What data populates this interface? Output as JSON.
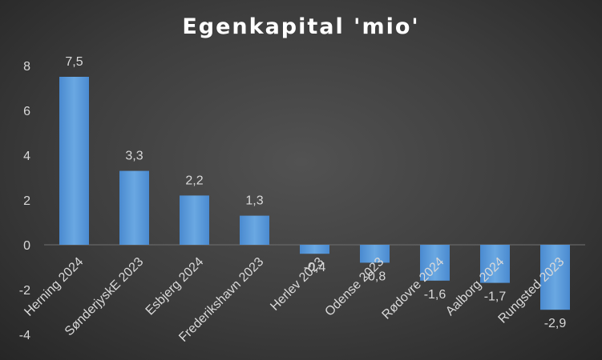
{
  "chart_data": {
    "type": "bar",
    "title": "Egenkapital 'mio'",
    "xlabel": "",
    "ylabel": "",
    "categories": [
      "Herning 2024",
      "SønderjyskE 2023",
      "Esbjerg 2024",
      "Frederikshavn 2023",
      "Herlev 2023",
      "Odense 2023",
      "Rødovre 2024",
      "Aalborg 2024",
      "Rungsted 2023"
    ],
    "values": [
      7.5,
      3.3,
      2.2,
      1.3,
      -0.4,
      -0.8,
      -1.6,
      -1.7,
      -2.9
    ],
    "data_labels": [
      "7,5",
      "3,3",
      "2,2",
      "1,3",
      "-0,4",
      "-0,8",
      "-1,6",
      "-1,7",
      "-2,9"
    ],
    "ylim": [
      -4,
      8
    ],
    "yticks": [
      -4,
      -2,
      0,
      2,
      4,
      6,
      8
    ],
    "grid": false,
    "legend": "none",
    "bar_color": "#5b9bd5",
    "text_color": "#d9d9d9"
  }
}
